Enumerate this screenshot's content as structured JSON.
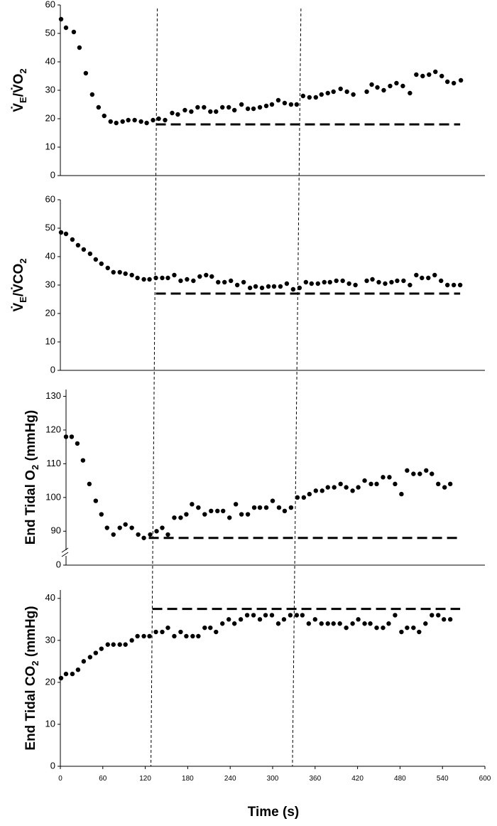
{
  "chart_data": [
    {
      "type": "scatter",
      "ylabel": [
        {
          "text": "V̇"
        },
        {
          "text": "E",
          "sub": true
        },
        {
          "text": "/V̇O"
        },
        {
          "text": "2",
          "sub": true
        }
      ],
      "xlim": [
        0,
        600
      ],
      "ylim": [
        0,
        60
      ],
      "yticks": [
        0,
        10,
        20,
        30,
        40,
        50,
        60
      ],
      "color": "#000000",
      "x": [
        1,
        8,
        19,
        27,
        36,
        45,
        54,
        62,
        71,
        79,
        88,
        96,
        105,
        114,
        122,
        131,
        139,
        148,
        158,
        166,
        176,
        185,
        194,
        203,
        212,
        220,
        229,
        238,
        246,
        256,
        265,
        273,
        282,
        291,
        299,
        308,
        317,
        326,
        334,
        343,
        352,
        361,
        369,
        378,
        386,
        396,
        405,
        414,
        433,
        440,
        448,
        457,
        466,
        475,
        484,
        494,
        503,
        512,
        521,
        530,
        539,
        547,
        556,
        566
      ],
      "values": [
        55,
        52,
        50.5,
        45,
        36,
        28.5,
        24,
        21,
        19,
        18.5,
        19,
        19.5,
        19.5,
        19,
        18.5,
        19.5,
        20,
        19.5,
        22,
        21.5,
        23,
        22.5,
        24,
        24,
        22.5,
        22.5,
        24,
        24,
        23,
        25,
        23.5,
        23.5,
        24,
        24.5,
        25,
        26.5,
        25.5,
        25,
        25,
        28,
        27.5,
        27.5,
        28.5,
        29,
        29.5,
        30.5,
        29.5,
        28.5,
        29.5,
        32,
        31,
        30,
        31.5,
        32.5,
        31.5,
        29,
        35.5,
        35,
        35.5,
        36.5,
        35,
        33,
        32.5,
        33.5
      ],
      "reference_line": {
        "value": 18,
        "x_start": 135,
        "x_end": 565
      }
    },
    {
      "type": "scatter",
      "ylabel": [
        {
          "text": "V̇"
        },
        {
          "text": "E",
          "sub": true
        },
        {
          "text": "/V̇CO"
        },
        {
          "text": "2",
          "sub": true
        }
      ],
      "xlim": [
        0,
        600
      ],
      "ylim": [
        0,
        60
      ],
      "yticks": [
        0,
        10,
        20,
        30,
        40,
        50,
        60
      ],
      "color": "#000000",
      "x": [
        1,
        8,
        17,
        25,
        33,
        42,
        50,
        58,
        67,
        75,
        84,
        92,
        101,
        109,
        118,
        126,
        135,
        144,
        152,
        161,
        170,
        179,
        188,
        197,
        206,
        214,
        223,
        232,
        241,
        250,
        259,
        268,
        276,
        285,
        294,
        302,
        311,
        320,
        329,
        338,
        347,
        355,
        364,
        373,
        381,
        390,
        399,
        408,
        417,
        433,
        441,
        450,
        459,
        468,
        476,
        485,
        494,
        503,
        511,
        520,
        529,
        538,
        547,
        556,
        565
      ],
      "values": [
        48.5,
        48,
        46,
        44,
        42.5,
        41,
        39,
        37.5,
        36,
        34.5,
        34.5,
        34,
        33.5,
        32.5,
        32,
        32,
        32.5,
        32.5,
        32.5,
        33.5,
        31.5,
        32,
        31.5,
        33,
        33.5,
        33,
        31,
        31,
        31.5,
        30,
        31,
        29,
        29.5,
        29,
        29.5,
        29.5,
        29.5,
        30.5,
        28.5,
        29,
        31,
        30.5,
        30.5,
        31,
        31,
        31.5,
        31.5,
        30.5,
        30,
        31.5,
        32,
        31,
        30.5,
        31,
        31.5,
        31.5,
        30,
        33.5,
        32.5,
        32.5,
        33.5,
        31.5,
        30,
        30,
        30
      ],
      "reference_line": {
        "value": 27,
        "x_start": 135,
        "x_end": 565
      }
    },
    {
      "type": "scatter",
      "ylabel": [
        {
          "text": "End Tidal O"
        },
        {
          "text": "2",
          "sub": true
        },
        {
          "text": " (mmHg)"
        }
      ],
      "xlim": [
        0,
        600
      ],
      "ylim": [
        0,
        132
      ],
      "axis_break": [
        0,
        85
      ],
      "yticks": [
        0,
        90,
        100,
        110,
        120,
        130
      ],
      "color": "#000000",
      "x": [
        8,
        16,
        24,
        32,
        41,
        50,
        58,
        66,
        75,
        84,
        92,
        101,
        110,
        118,
        127,
        136,
        144,
        152,
        161,
        170,
        178,
        186,
        195,
        204,
        213,
        222,
        230,
        239,
        248,
        256,
        265,
        274,
        282,
        291,
        300,
        309,
        317,
        326,
        335,
        344,
        352,
        361,
        370,
        378,
        387,
        396,
        404,
        413,
        421,
        430,
        439,
        447,
        456,
        465,
        473,
        482,
        490,
        499,
        508,
        517,
        525,
        534,
        543,
        551
      ],
      "values": [
        118,
        118,
        116,
        111,
        104,
        99,
        95,
        91,
        89,
        91,
        92,
        91,
        89,
        88,
        89,
        90,
        91,
        89,
        94,
        94,
        95,
        98,
        97,
        95,
        96,
        96,
        96,
        94,
        98,
        95,
        95,
        97,
        97,
        97,
        99,
        97,
        96,
        97,
        100,
        100,
        101,
        102,
        102,
        103,
        103,
        104,
        103,
        102,
        103,
        105,
        104,
        104,
        106,
        106,
        104,
        101,
        108,
        107,
        107,
        108,
        107,
        104,
        103,
        104
      ],
      "reference_line": {
        "value": 88,
        "x_start": 125,
        "x_end": 565
      }
    },
    {
      "type": "scatter",
      "ylabel": [
        {
          "text": "End Tidal CO"
        },
        {
          "text": "2",
          "sub": true
        },
        {
          "text": " (mmHg)"
        }
      ],
      "xlabel": "Time (s)",
      "xlim": [
        0,
        600
      ],
      "xticks": [
        0,
        60,
        120,
        180,
        240,
        300,
        360,
        420,
        480,
        540,
        600
      ],
      "ylim": [
        0,
        42
      ],
      "yticks": [
        0,
        10,
        20,
        30,
        40
      ],
      "color": "#000000",
      "x": [
        1,
        8,
        17,
        25,
        33,
        42,
        50,
        58,
        67,
        75,
        84,
        92,
        101,
        109,
        118,
        126,
        135,
        144,
        152,
        161,
        170,
        178,
        187,
        195,
        204,
        212,
        220,
        229,
        238,
        246,
        255,
        264,
        273,
        282,
        290,
        299,
        308,
        316,
        325,
        334,
        342,
        351,
        360,
        369,
        378,
        386,
        395,
        404,
        413,
        421,
        430,
        438,
        447,
        456,
        464,
        473,
        482,
        490,
        499,
        507,
        516,
        525,
        534,
        542,
        551
      ],
      "values": [
        21,
        22,
        22,
        23,
        25,
        26,
        27,
        28,
        29,
        29,
        29,
        29,
        30,
        31,
        31,
        31,
        32,
        32,
        33,
        31,
        32,
        31,
        31,
        31,
        33,
        33,
        32,
        34,
        35,
        34,
        35,
        36,
        36,
        35,
        36,
        36,
        34,
        35,
        36,
        36,
        36,
        34,
        35,
        34,
        34,
        34,
        34,
        33,
        34,
        35,
        34,
        34,
        33,
        33,
        34,
        36,
        32,
        33,
        33,
        32,
        34,
        36,
        36,
        35,
        35
      ],
      "reference_line": {
        "value": 37.5,
        "x_start": 130,
        "x_end": 565
      }
    }
  ],
  "threshold_lines": [
    {
      "top": 137,
      "bottom": 128
    },
    {
      "top": 340,
      "bottom": 328
    }
  ]
}
